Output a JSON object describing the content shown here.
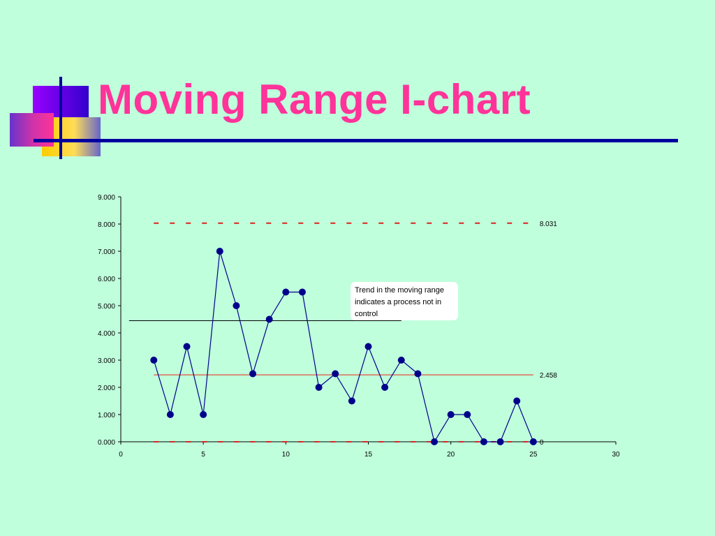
{
  "slide": {
    "title": "Moving Range I-chart",
    "background_color": "#bfffdc",
    "title_color": "#ff3399",
    "rule_color": "#0000a0"
  },
  "chart_data": {
    "type": "line",
    "title": "",
    "xlabel": "",
    "ylabel": "",
    "xlim": [
      0,
      30
    ],
    "ylim": [
      0,
      9
    ],
    "x_ticks": [
      "0",
      "5",
      "10",
      "15",
      "20",
      "25",
      "30"
    ],
    "y_ticks": [
      "0.000",
      "1.000",
      "2.000",
      "3.000",
      "4.000",
      "5.000",
      "6.000",
      "7.000",
      "8.000",
      "9.000"
    ],
    "grid": false,
    "legend": "none",
    "series": [
      {
        "color": "#00008b",
        "marker": "circle",
        "x": [
          2,
          3,
          4,
          5,
          6,
          7,
          8,
          9,
          10,
          11,
          12,
          13,
          14,
          15,
          16,
          17,
          18,
          19,
          20,
          21,
          22,
          23,
          24,
          25
        ],
        "values": [
          3.0,
          1.0,
          3.5,
          1.0,
          7.0,
          5.0,
          2.5,
          4.5,
          5.5,
          5.5,
          2.0,
          2.5,
          1.5,
          3.5,
          2.0,
          3.0,
          2.5,
          0.0,
          1.0,
          1.0,
          0.0,
          0.0,
          1.5,
          0.0
        ]
      }
    ],
    "reference_lines": [
      {
        "label": "8.031",
        "y": 8.031,
        "x_from": 2,
        "x_to": 25,
        "style": "dashed",
        "color": "#e02020"
      },
      {
        "label": "2.458",
        "y": 2.458,
        "x_from": 2,
        "x_to": 25,
        "style": "solid",
        "color": "#e05040"
      },
      {
        "label": "0",
        "y": 0,
        "x_from": 2,
        "x_to": 25,
        "style": "dashed",
        "color": "#e02020"
      }
    ],
    "trend_line": {
      "y": 4.45,
      "x_from": 0.5,
      "x_to": 17,
      "color": "#000000"
    },
    "annotation": {
      "text": "Trend in the moving range indicates a process not in control"
    }
  }
}
